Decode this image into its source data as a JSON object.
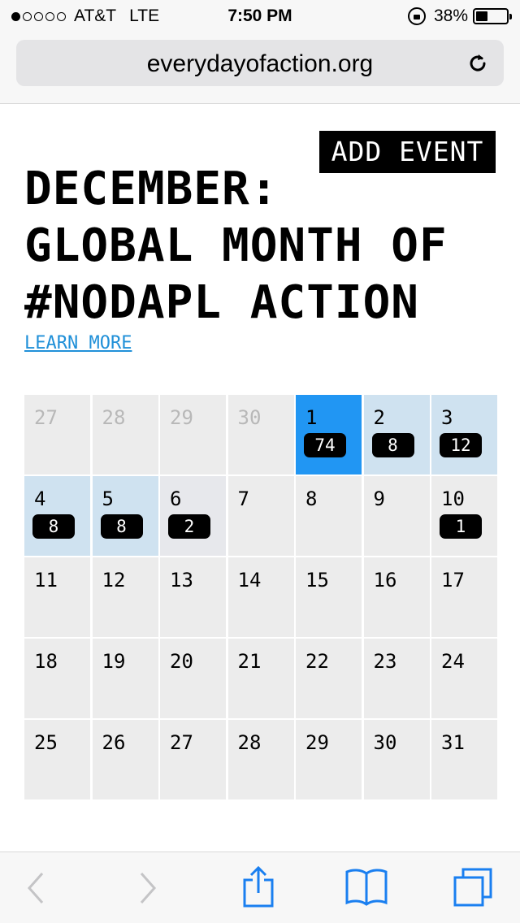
{
  "status_bar": {
    "carrier": "AT&T",
    "network": "LTE",
    "time": "7:50 PM",
    "battery_percent": "38%",
    "battery_level": 0.38,
    "signal_bars_filled": 1,
    "signal_bars_total": 5
  },
  "browser": {
    "url": "everydayofaction.org",
    "reload_icon": "reload-icon"
  },
  "page": {
    "add_event_label": "ADD EVENT",
    "headline_lines": [
      "DECEMBER:",
      "GLOBAL MONTH OF",
      "#NODAPL ACTION"
    ],
    "learn_more_label": "LEARN MORE"
  },
  "calendar": {
    "weeks": [
      [
        {
          "day": "27",
          "other_month": true
        },
        {
          "day": "28",
          "other_month": true
        },
        {
          "day": "29",
          "other_month": true
        },
        {
          "day": "30",
          "other_month": true
        },
        {
          "day": "1",
          "count": "74",
          "state": "today"
        },
        {
          "day": "2",
          "count": "8",
          "state": "has-events"
        },
        {
          "day": "3",
          "count": "12",
          "state": "has-events"
        }
      ],
      [
        {
          "day": "4",
          "count": "8",
          "state": "has-events"
        },
        {
          "day": "5",
          "count": "8",
          "state": "has-events"
        },
        {
          "day": "6",
          "count": "2",
          "state": "few"
        },
        {
          "day": "7"
        },
        {
          "day": "8"
        },
        {
          "day": "9"
        },
        {
          "day": "10",
          "count": "1"
        }
      ],
      [
        {
          "day": "11"
        },
        {
          "day": "12"
        },
        {
          "day": "13"
        },
        {
          "day": "14"
        },
        {
          "day": "15"
        },
        {
          "day": "16"
        },
        {
          "day": "17"
        }
      ],
      [
        {
          "day": "18"
        },
        {
          "day": "19"
        },
        {
          "day": "20"
        },
        {
          "day": "21"
        },
        {
          "day": "22"
        },
        {
          "day": "23"
        },
        {
          "day": "24"
        }
      ],
      [
        {
          "day": "25"
        },
        {
          "day": "26"
        },
        {
          "day": "27"
        },
        {
          "day": "28"
        },
        {
          "day": "29"
        },
        {
          "day": "30"
        },
        {
          "day": "31"
        }
      ]
    ]
  },
  "toolbar": {
    "items": [
      "back-icon",
      "forward-icon",
      "share-icon",
      "bookmarks-icon",
      "tabs-icon"
    ]
  },
  "colors": {
    "today": "#2196f3",
    "has_events": "#cfe2f0",
    "link": "#2090d8",
    "ios_blue": "#1a7ff0"
  }
}
